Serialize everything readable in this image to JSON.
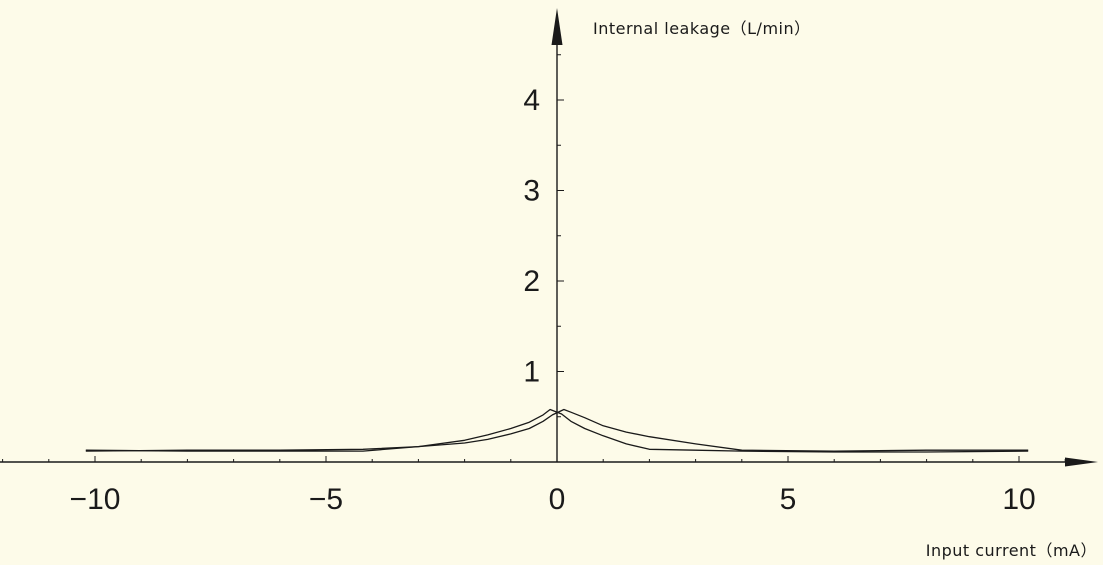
{
  "chart_data": {
    "type": "line",
    "title": "",
    "xlabel": "Input current（mA）",
    "ylabel": "Internal leakage（L/min）",
    "xlim": [
      -12.2,
      11.5
    ],
    "ylim": [
      0,
      4.9
    ],
    "x_ticks": [
      -10,
      -5,
      0,
      5,
      10
    ],
    "x_tick_labels": [
      "−10",
      "−5",
      "0",
      "5",
      "10"
    ],
    "y_ticks": [
      1,
      2,
      3,
      4
    ],
    "y_tick_labels": [
      "1",
      "2",
      "3",
      "4"
    ],
    "grid": false,
    "legend": "none",
    "series": [
      {
        "x": [
          -10.2,
          -8,
          -6,
          -4.2,
          -3,
          -2,
          -1.5,
          -1,
          -0.6,
          -0.3,
          -0.15,
          0.1,
          0.3,
          0.6,
          1,
          1.5,
          2,
          3,
          4,
          6,
          8,
          10.2
        ],
        "y": [
          0.13,
          0.12,
          0.12,
          0.12,
          0.17,
          0.24,
          0.3,
          0.37,
          0.44,
          0.52,
          0.58,
          0.53,
          0.45,
          0.37,
          0.29,
          0.2,
          0.14,
          0.13,
          0.12,
          0.11,
          0.11,
          0.12
        ]
      },
      {
        "x": [
          -10.2,
          -8,
          -6,
          -4.2,
          -3,
          -2,
          -1.5,
          -1,
          -0.6,
          -0.3,
          -0.1,
          0.15,
          0.3,
          0.6,
          1,
          1.5,
          2,
          3,
          4,
          6,
          8,
          10.2
        ],
        "y": [
          0.12,
          0.13,
          0.13,
          0.14,
          0.17,
          0.21,
          0.25,
          0.31,
          0.37,
          0.45,
          0.52,
          0.58,
          0.55,
          0.49,
          0.4,
          0.33,
          0.28,
          0.2,
          0.13,
          0.12,
          0.13,
          0.13
        ]
      }
    ]
  }
}
